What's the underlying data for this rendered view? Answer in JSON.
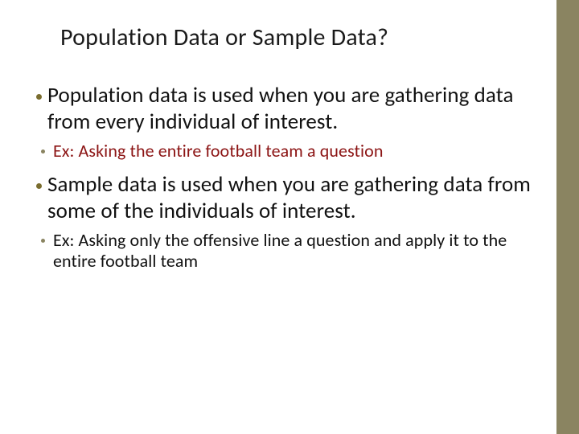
{
  "slide": {
    "title": "Population Data or Sample Data?",
    "title_fontsize": 30,
    "title_color": "#1a1a1a",
    "background_color": "#ffffff",
    "accent_stripe_color": "#8a8461",
    "accent_stripe_width": 28,
    "bullets": [
      {
        "level": "main",
        "text": "Population data is used when you are gathering data from every individual of interest.",
        "color": "#111111",
        "bullet_color": "#7a6d2f",
        "fontsize": 27
      },
      {
        "level": "sub",
        "text": " Ex: Asking the entire football team a question",
        "color": "#8c1515",
        "bullet_color": "#8a8461",
        "fontsize": 22
      },
      {
        "level": "main",
        "text": "Sample data is used when you are gathering data from some of the individuals of interest.",
        "color": "#111111",
        "bullet_color": "#7a6d2f",
        "fontsize": 27
      },
      {
        "level": "sub",
        "text": "Ex: Asking only the offensive line a question and apply it to the entire football team",
        "color": "#111111",
        "bullet_color": "#8a8461",
        "fontsize": 22
      }
    ]
  }
}
